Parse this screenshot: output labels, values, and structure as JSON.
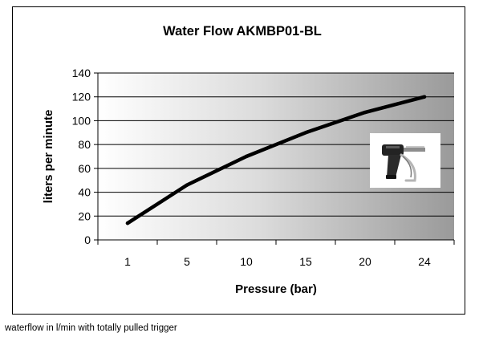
{
  "chart_data": {
    "type": "line",
    "title": "Water Flow AKMBP01-BL",
    "xlabel": "Pressure (bar)",
    "ylabel": "liters per minute",
    "categories": [
      "1",
      "5",
      "10",
      "15",
      "20",
      "24"
    ],
    "values": [
      14,
      46,
      70,
      90,
      107,
      120
    ],
    "ylim": [
      0,
      140
    ],
    "yticks": [
      "0",
      "20",
      "40",
      "60",
      "80",
      "100",
      "120",
      "140"
    ],
    "grid": true,
    "legend": "none",
    "plot_background": "gradient-white-to-gray",
    "line_color": "#000000",
    "inset_image": "spray-gun-photo"
  },
  "caption": "waterflow in l/min with totally pulled trigger"
}
